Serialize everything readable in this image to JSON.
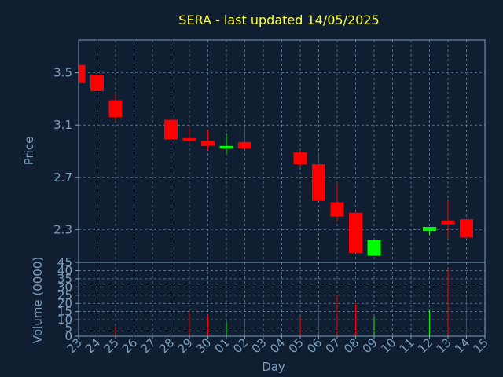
{
  "chart_data": [
    {
      "type": "candlestick",
      "title": "SERA - last updated 14/05/2025",
      "ylabel": "Price",
      "ylim": [
        2.05,
        3.75
      ],
      "yticks": [
        "3.5",
        "3.1",
        "2.7",
        "2.3"
      ],
      "ytick_values": [
        3.5,
        3.1,
        2.7,
        2.3
      ],
      "grid": true,
      "categories": [
        "23",
        "24",
        "25",
        "26",
        "27",
        "28",
        "29",
        "30",
        "01",
        "02",
        "03",
        "04",
        "05",
        "06",
        "07",
        "08",
        "09",
        "10",
        "11",
        "12",
        "13",
        "14",
        "15"
      ],
      "candles": [
        {
          "x": "23",
          "open": 3.56,
          "high": 3.56,
          "low": 3.42,
          "close": 3.42
        },
        {
          "x": "24",
          "open": 3.48,
          "high": 3.48,
          "low": 3.36,
          "close": 3.36
        },
        {
          "x": "25",
          "open": 3.29,
          "high": 3.34,
          "low": 3.13,
          "close": 3.16
        },
        {
          "x": "28",
          "open": 3.14,
          "high": 3.14,
          "low": 2.98,
          "close": 2.99
        },
        {
          "x": "29",
          "open": 3.0,
          "high": 3.08,
          "low": 2.96,
          "close": 2.98
        },
        {
          "x": "30",
          "open": 2.98,
          "high": 3.06,
          "low": 2.91,
          "close": 2.94
        },
        {
          "x": "01",
          "open": 2.92,
          "high": 3.04,
          "low": 2.88,
          "close": 2.94
        },
        {
          "x": "02",
          "open": 2.97,
          "high": 3.08,
          "low": 2.92,
          "close": 2.92
        },
        {
          "x": "05",
          "open": 2.89,
          "high": 2.91,
          "low": 2.78,
          "close": 2.8
        },
        {
          "x": "06",
          "open": 2.8,
          "high": 2.88,
          "low": 2.52,
          "close": 2.52
        },
        {
          "x": "07",
          "open": 2.51,
          "high": 2.66,
          "low": 2.36,
          "close": 2.4
        },
        {
          "x": "08",
          "open": 2.43,
          "high": 2.43,
          "low": 2.12,
          "close": 2.12
        },
        {
          "x": "09",
          "open": 2.1,
          "high": 2.22,
          "low": 2.1,
          "close": 2.22
        },
        {
          "x": "12",
          "open": 2.29,
          "high": 2.32,
          "low": 2.26,
          "close": 2.32
        },
        {
          "x": "13",
          "open": 2.37,
          "high": 2.52,
          "low": 2.24,
          "close": 2.34
        },
        {
          "x": "14",
          "open": 2.38,
          "high": 2.38,
          "low": 2.24,
          "close": 2.24
        }
      ]
    },
    {
      "type": "bar",
      "ylabel": "Volume (0000)",
      "xlabel": "Day",
      "ylim": [
        0,
        45
      ],
      "yticks": [
        "0",
        "5",
        "10",
        "15",
        "20",
        "25",
        "30",
        "35",
        "40",
        "45"
      ],
      "ytick_values": [
        0,
        5,
        10,
        15,
        20,
        25,
        30,
        35,
        40,
        45
      ],
      "categories": [
        "23",
        "24",
        "25",
        "26",
        "27",
        "28",
        "29",
        "30",
        "01",
        "02",
        "03",
        "04",
        "05",
        "06",
        "07",
        "08",
        "09",
        "10",
        "11",
        "12",
        "13",
        "14",
        "15"
      ],
      "bars": [
        {
          "x": "24",
          "value": 11,
          "color": "#ff0000"
        },
        {
          "x": "25",
          "value": 6,
          "color": "#ff0000"
        },
        {
          "x": "28",
          "value": 11,
          "color": "#ff0000"
        },
        {
          "x": "29",
          "value": 15,
          "color": "#ff0000"
        },
        {
          "x": "30",
          "value": 13,
          "color": "#ff0000"
        },
        {
          "x": "01",
          "value": 9,
          "color": "#00ff00"
        },
        {
          "x": "02",
          "value": 9,
          "color": "#ff0000"
        },
        {
          "x": "05",
          "value": 12,
          "color": "#ff0000"
        },
        {
          "x": "06",
          "value": 18,
          "color": "#ff0000"
        },
        {
          "x": "07",
          "value": 25,
          "color": "#ff0000"
        },
        {
          "x": "08",
          "value": 20,
          "color": "#ff0000"
        },
        {
          "x": "09",
          "value": 12,
          "color": "#00ff00"
        },
        {
          "x": "12",
          "value": 16,
          "color": "#00ff00"
        },
        {
          "x": "13",
          "value": 41,
          "color": "#ff0000"
        },
        {
          "x": "14",
          "value": 23,
          "color": "#ff0000"
        }
      ]
    }
  ],
  "colors": {
    "background": "#0f1e30",
    "axis": "#7f9fbf",
    "grid": "#7f9fbf",
    "title": "#ffff33",
    "up": "#00ff00",
    "down": "#ff0000"
  }
}
